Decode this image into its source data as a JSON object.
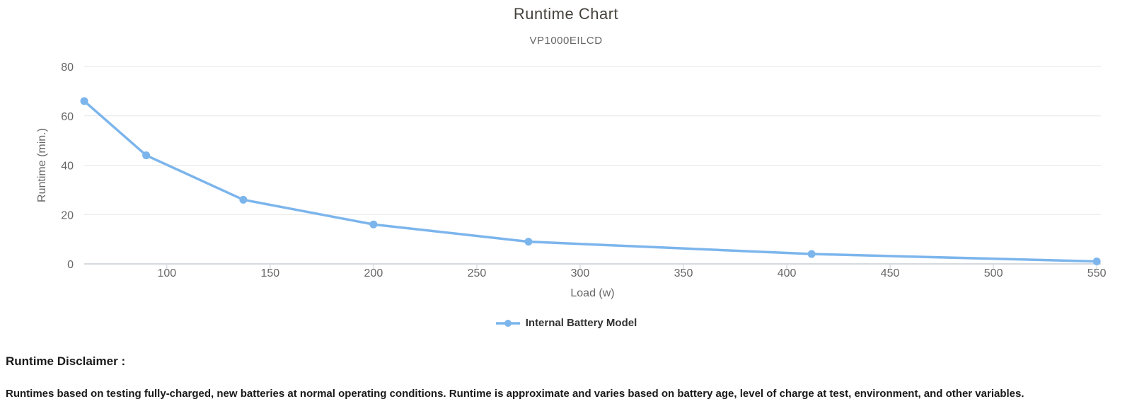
{
  "chart_data": {
    "type": "line",
    "title": "Runtime Chart",
    "subtitle": "VP1000EILCD",
    "xlabel": "Load (w)",
    "ylabel": "Runtime (min.)",
    "xlim": [
      60,
      552
    ],
    "ylim": [
      0,
      80
    ],
    "x_ticks": [
      100,
      150,
      200,
      250,
      300,
      350,
      400,
      450,
      500,
      550
    ],
    "y_ticks": [
      0,
      20,
      40,
      60,
      80
    ],
    "grid": "horizontal-only",
    "legend_position": "bottom-center",
    "series": [
      {
        "name": "Internal Battery Model",
        "color": "#7cb5ec",
        "marker": "circle",
        "points": [
          [
            60,
            66
          ],
          [
            90,
            44
          ],
          [
            137,
            26
          ],
          [
            200,
            16
          ],
          [
            275,
            9
          ],
          [
            412,
            4
          ],
          [
            550,
            1
          ]
        ]
      }
    ]
  },
  "disclaimer": {
    "heading": "Runtime Disclaimer :",
    "body": "Runtimes based on testing fully-charged, new batteries at normal operating conditions. Runtime is approximate and varies based on battery age, level of charge at test, environment, and other variables."
  },
  "colors": {
    "series": "#7cb5ec",
    "grid": "#e6e6e6",
    "axis": "#c9ced3",
    "title": "#47433d",
    "subtitle": "#666666",
    "tick_label": "#666666",
    "axis_title": "#666666",
    "legend_text": "#333333",
    "disclaimer_text": "#1a1a1a"
  }
}
